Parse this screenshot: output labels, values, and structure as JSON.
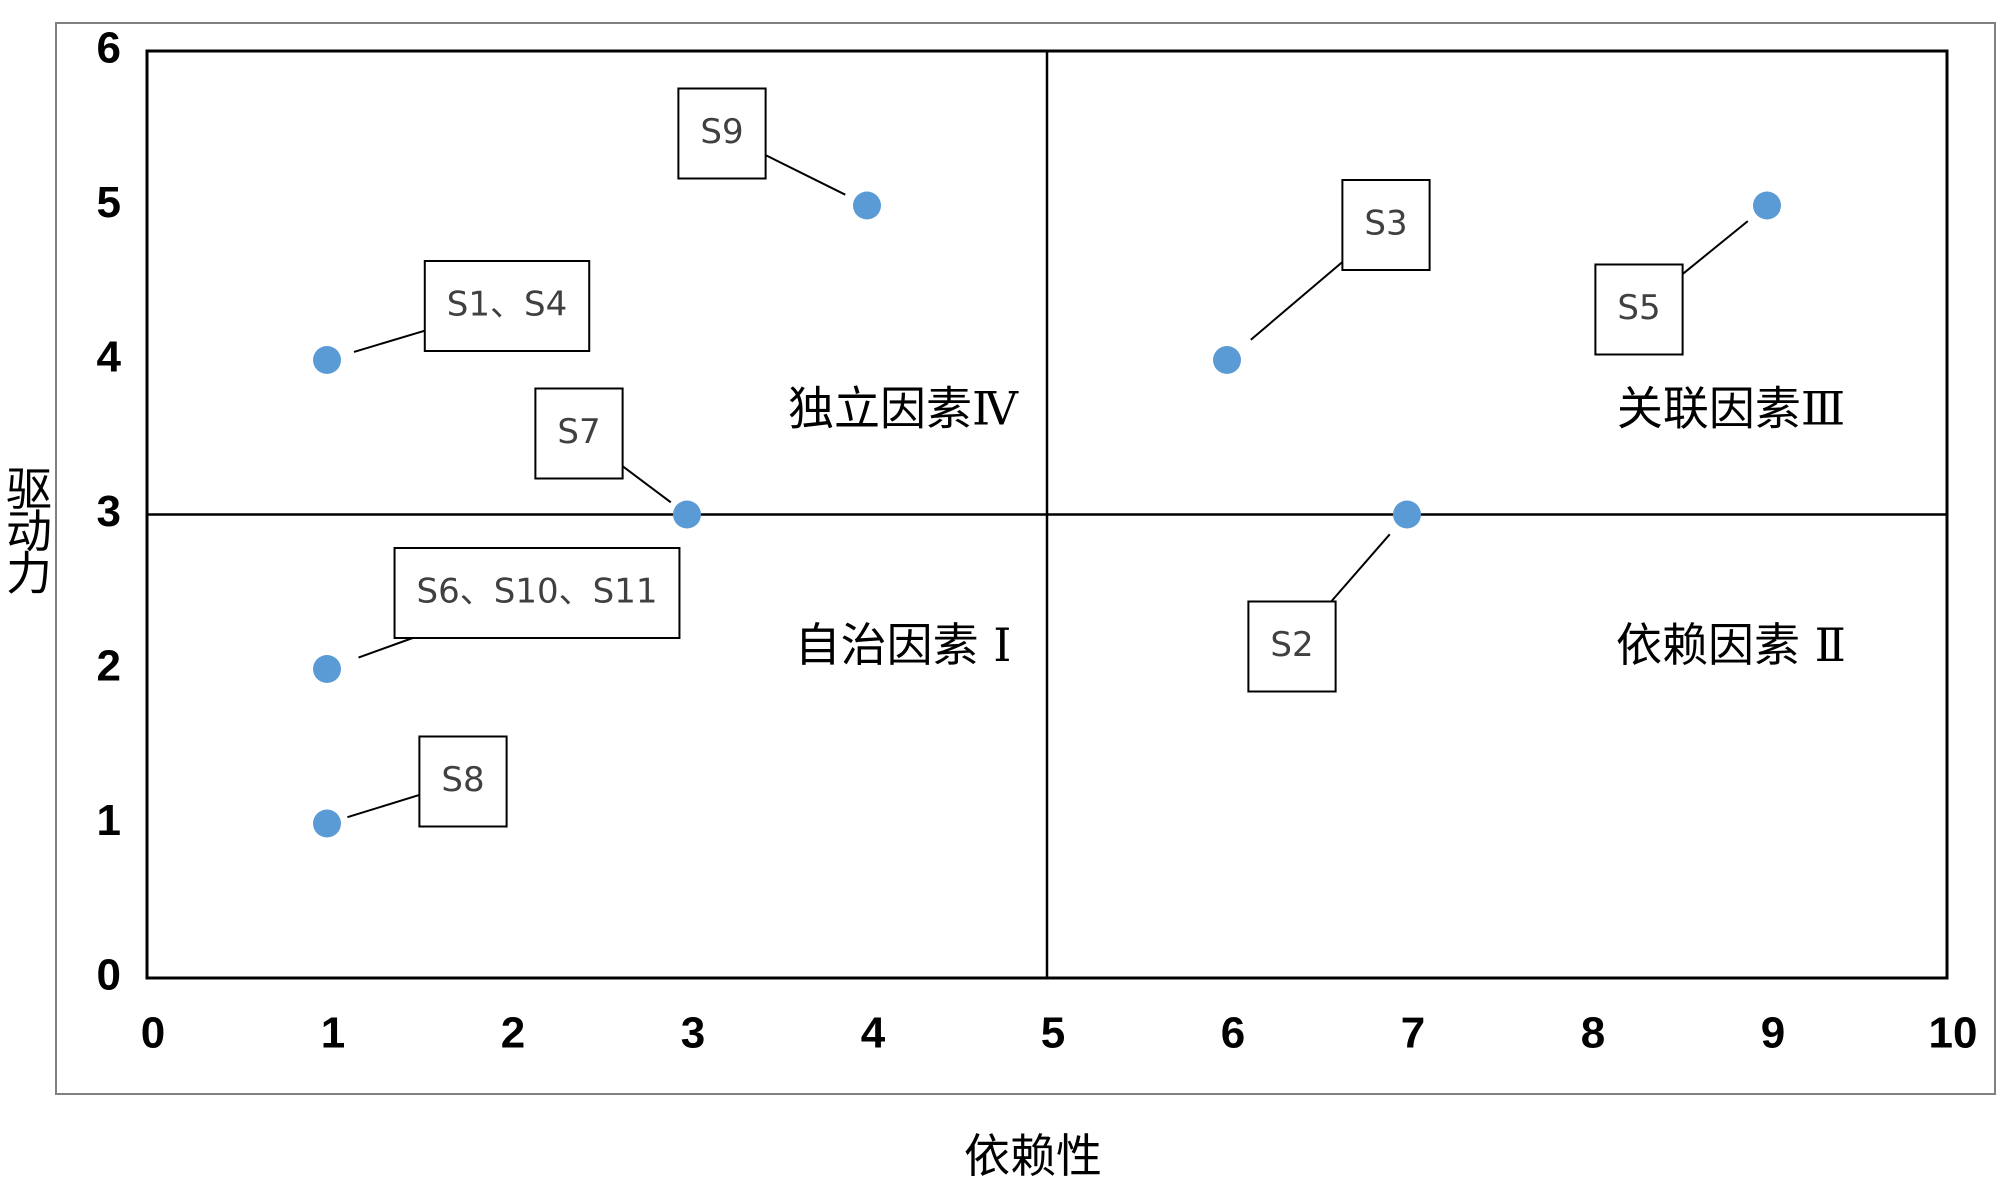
{
  "chart_data": {
    "type": "scatter",
    "x_label": "依赖性",
    "y_label": "驱动力",
    "x": [
      4,
      1,
      3,
      1,
      1,
      6,
      9,
      7
    ],
    "values": [
      5,
      4,
      3,
      2,
      1,
      4,
      5,
      3
    ],
    "labels": [
      "S9",
      "S1、S4",
      "S7",
      "S6、S10、S11",
      "S8",
      "S3",
      "S5",
      "S2"
    ],
    "color": "#5b9bd5",
    "xlim": [
      0,
      10
    ],
    "xticks": [
      0,
      1,
      2,
      3,
      4,
      5,
      6,
      7,
      8,
      9,
      10
    ],
    "ylim": [
      0,
      6
    ],
    "yticks": [
      0,
      1,
      2,
      3,
      4,
      5,
      6
    ],
    "quadrant_lines": {
      "x": 5,
      "y": 3
    },
    "annotations": [
      "独立因素Ⅳ",
      "关联因素Ⅲ",
      "自治因素 Ⅰ",
      "依赖因素 Ⅱ"
    ]
  }
}
